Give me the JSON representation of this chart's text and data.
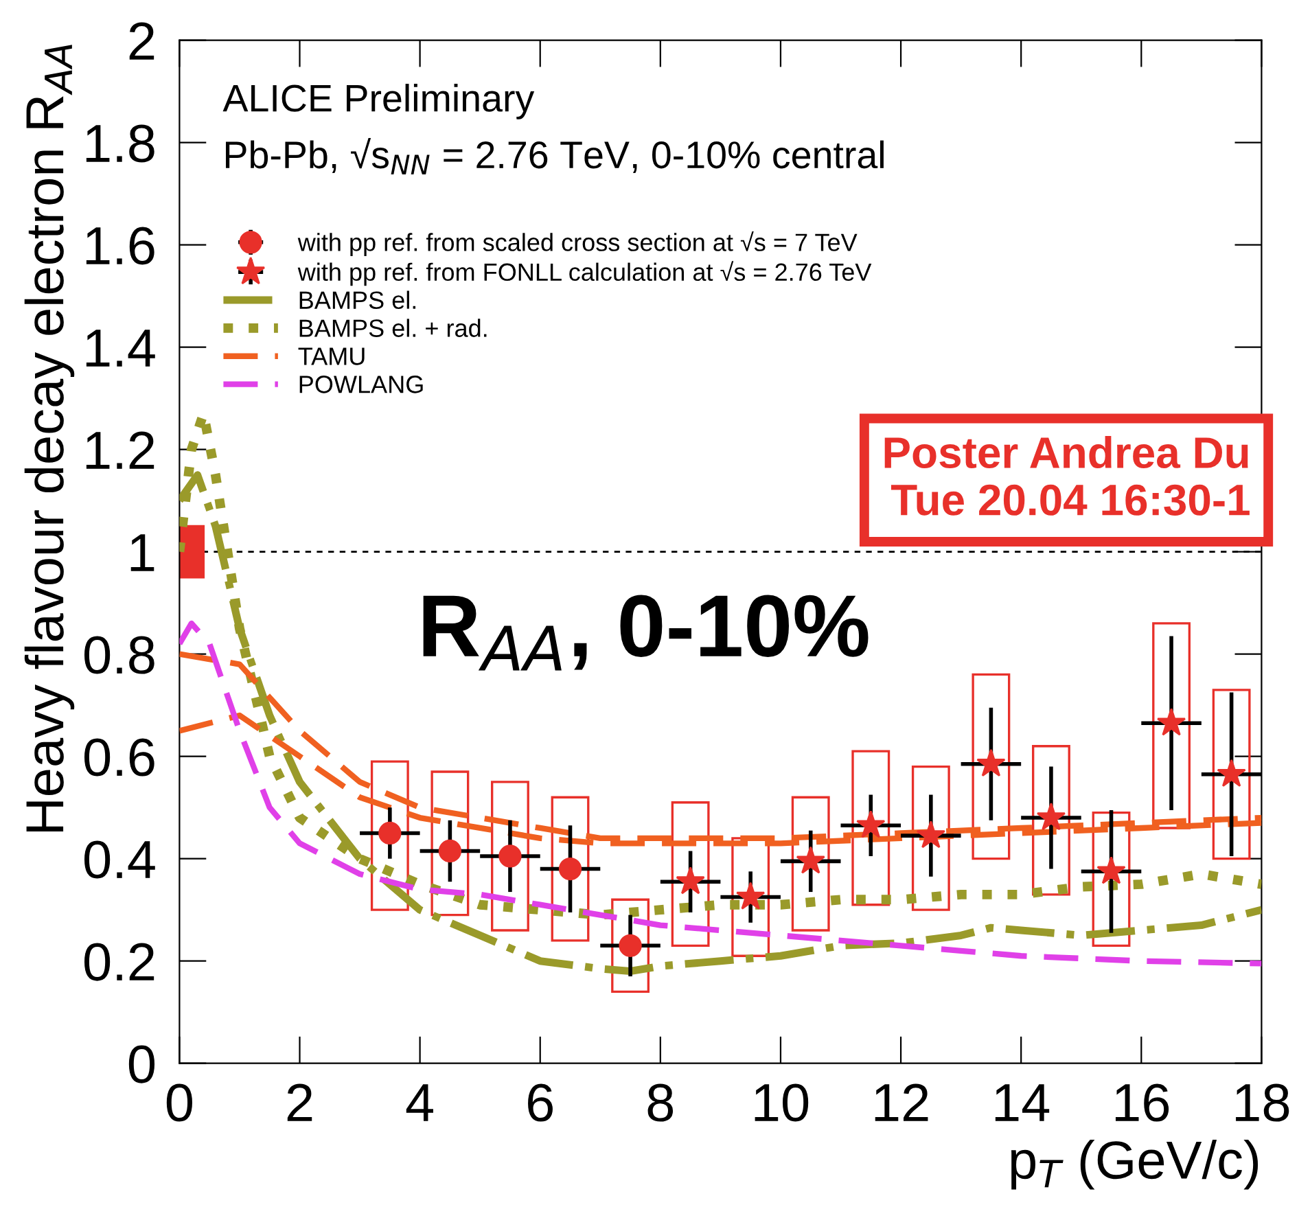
{
  "chart_data": {
    "type": "scatter",
    "xlabel": "p$_{T}$ (GeV/c)",
    "ylabel": "Heavy flavour decay electron R$_{AA}$",
    "xlim": [
      0,
      18
    ],
    "ylim": [
      0,
      2
    ],
    "xticks": [
      0,
      2,
      4,
      6,
      8,
      10,
      12,
      14,
      16,
      18
    ],
    "yticks": [
      0,
      0.2,
      0.4,
      0.6,
      0.8,
      1,
      1.2,
      1.4,
      1.6,
      1.8,
      2
    ],
    "grid": false,
    "legend": "top left",
    "ref_lines": [
      {
        "axis": "y",
        "value": 1,
        "color": "#000000",
        "line_style": "dashed"
      }
    ],
    "annotations": [
      "ALICE Preliminary",
      "Pb-Pb, √s$_{NN}$ = 2.76 TeV, 0-10% central",
      "R$_{AA}$, 0-10%",
      "Poster Andrea Du\nTue 20.04 16:30-1"
    ],
    "series": [
      {
        "type": "bar",
        "color": "#e8302a",
        "x": [
          0.2
        ],
        "base": [
          0.95
        ],
        "values": [
          0.1
        ]
      },
      {
        "type": "bar",
        "color": "#e8302a",
        "line_style": "solid",
        "x": [
          3.5,
          4.5,
          5.5,
          6.5,
          7.5,
          8.5,
          9.5,
          10.5,
          11.5,
          12.5,
          13.5,
          14.5,
          15.5,
          16.5,
          17.5
        ],
        "base": [
          0.3,
          0.29,
          0.26,
          0.24,
          0.14,
          0.23,
          0.21,
          0.26,
          0.31,
          0.3,
          0.4,
          0.33,
          0.23,
          0.46,
          0.4
        ],
        "values": [
          0.29,
          0.28,
          0.29,
          0.28,
          0.18,
          0.28,
          0.23,
          0.26,
          0.3,
          0.28,
          0.36,
          0.29,
          0.26,
          0.4,
          0.33
        ]
      },
      {
        "name": "with pp ref. from scaled cross section at √s = 7 TeV",
        "color": "#e8302a",
        "marker": "circle",
        "x": [
          3.5,
          4.5,
          5.5,
          6.5,
          7.5
        ],
        "values": [
          0.45,
          0.415,
          0.405,
          0.38,
          0.23
        ],
        "errors": [
          0.05,
          0.06,
          0.07,
          0.085,
          0.06
        ],
        "xerrors": [
          0.5,
          0.5,
          0.5,
          0.5,
          0.5
        ]
      },
      {
        "name": "with pp ref. from FONLL calculation at √s = 2.76 TeV",
        "color": "#e8302a",
        "marker": "star",
        "x": [
          8.5,
          9.5,
          10.5,
          11.5,
          12.5,
          13.5,
          14.5,
          15.5,
          16.5,
          17.5
        ],
        "values": [
          0.355,
          0.325,
          0.395,
          0.465,
          0.445,
          0.585,
          0.48,
          0.375,
          0.665,
          0.565
        ],
        "errors": [
          0.06,
          0.05,
          0.06,
          0.06,
          0.08,
          0.11,
          0.1,
          0.12,
          0.17,
          0.16
        ],
        "xerrors": [
          0.5,
          0.5,
          0.5,
          0.5,
          0.5,
          0.5,
          0.5,
          0.5,
          0.5,
          0.5
        ]
      },
      {
        "type": "line",
        "name": "BAMPS el.",
        "color": "#9a9a2a",
        "line_style": "dashdot",
        "x": [
          0,
          0.3,
          0.6,
          1,
          1.5,
          2,
          3,
          4,
          5,
          6,
          7,
          7.5,
          8,
          9,
          10,
          11,
          12,
          13,
          13.5,
          14,
          15,
          16,
          17,
          18
        ],
        "values": [
          1.1,
          1.15,
          1.05,
          0.85,
          0.68,
          0.55,
          0.4,
          0.3,
          0.25,
          0.2,
          0.185,
          0.18,
          0.19,
          0.2,
          0.21,
          0.23,
          0.235,
          0.25,
          0.265,
          0.26,
          0.25,
          0.26,
          0.27,
          0.3
        ]
      },
      {
        "type": "line",
        "name": "BAMPS el. + rad.",
        "color": "#9a9a2a",
        "line_style": "dotted",
        "x": [
          0,
          0.2,
          0.4,
          0.6,
          1,
          1.5,
          2,
          3,
          4,
          5,
          6,
          7,
          8,
          9,
          10,
          11,
          12,
          13,
          14,
          15,
          16,
          17,
          18
        ],
        "values": [
          1.0,
          1.2,
          1.27,
          1.15,
          0.85,
          0.6,
          0.48,
          0.4,
          0.35,
          0.31,
          0.3,
          0.29,
          0.3,
          0.31,
          0.31,
          0.32,
          0.32,
          0.33,
          0.33,
          0.345,
          0.35,
          0.37,
          0.35
        ]
      },
      {
        "type": "line",
        "name": "TAMU",
        "color": "#f06020",
        "line_style": "dashed",
        "x": [
          0,
          1,
          2,
          3,
          4,
          5,
          6,
          7,
          8,
          10,
          12,
          14,
          16,
          18
        ],
        "values": [
          0.8,
          0.78,
          0.65,
          0.55,
          0.5,
          0.48,
          0.46,
          0.44,
          0.44,
          0.44,
          0.45,
          0.46,
          0.47,
          0.48
        ]
      },
      {
        "type": "line",
        "color": "#f06020",
        "line_style": "dashed",
        "x": [
          0,
          1,
          2,
          3,
          4,
          5,
          6,
          7,
          8,
          10,
          12,
          14,
          16,
          18
        ],
        "values": [
          0.65,
          0.68,
          0.6,
          0.52,
          0.48,
          0.46,
          0.44,
          0.43,
          0.43,
          0.43,
          0.44,
          0.45,
          0.46,
          0.47
        ]
      },
      {
        "type": "line",
        "name": "POWLANG",
        "color": "#e040e8",
        "line_style": "dashed",
        "x": [
          0,
          0.2,
          0.5,
          1,
          1.5,
          2,
          3,
          4,
          5,
          6,
          7,
          8,
          9,
          10,
          11,
          12,
          13,
          14,
          16,
          18
        ],
        "values": [
          0.82,
          0.86,
          0.82,
          0.65,
          0.5,
          0.43,
          0.37,
          0.34,
          0.33,
          0.31,
          0.29,
          0.27,
          0.26,
          0.25,
          0.24,
          0.23,
          0.22,
          0.21,
          0.2,
          0.195
        ]
      }
    ]
  }
}
